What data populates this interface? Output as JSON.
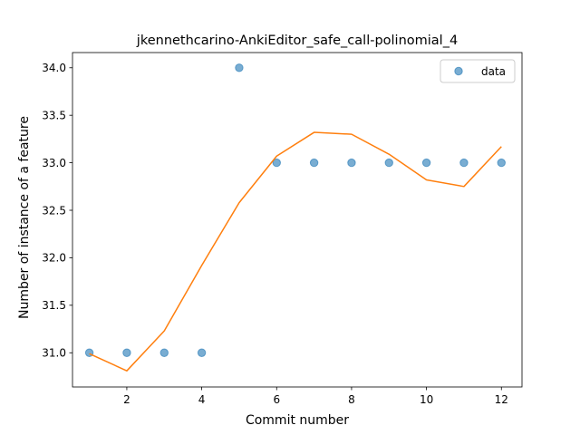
{
  "chart_data": {
    "type": "scatter",
    "title": "jkennethcarino-AnkiEditor_safe_call-polinomial_4",
    "xlabel": "Commit number",
    "ylabel": "Number of instance of a feature",
    "xlim": [
      0.55,
      12.55
    ],
    "ylim": [
      30.64,
      34.16
    ],
    "xticks": [
      2,
      4,
      6,
      8,
      10,
      12
    ],
    "yticks": [
      31.0,
      31.5,
      32.0,
      32.5,
      33.0,
      33.5,
      34.0
    ],
    "ytick_labels": [
      "31.0",
      "31.5",
      "32.0",
      "32.5",
      "33.0",
      "33.5",
      "34.0"
    ],
    "grid": false,
    "legend_position": "top-right",
    "series": [
      {
        "name": "data",
        "kind": "scatter",
        "color": "#1f77b4",
        "x": [
          1,
          2,
          3,
          4,
          5,
          6,
          7,
          8,
          9,
          10,
          11,
          12
        ],
        "y": [
          31,
          31,
          31,
          31,
          34,
          33,
          33,
          33,
          33,
          33,
          33,
          33
        ]
      },
      {
        "kind": "line",
        "color": "#ff7f0e",
        "x": [
          1,
          2,
          3,
          4,
          5,
          6,
          7,
          8,
          9,
          10,
          11,
          12
        ],
        "y": [
          30.99,
          30.81,
          31.23,
          31.92,
          32.58,
          33.07,
          33.32,
          33.3,
          33.09,
          32.82,
          32.75,
          33.17
        ]
      }
    ]
  }
}
